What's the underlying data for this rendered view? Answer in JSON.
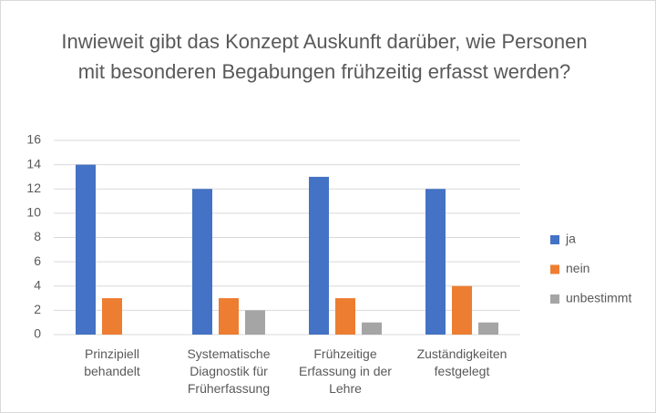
{
  "chart_data": {
    "type": "bar",
    "title": "Inwieweit gibt das Konzept Auskunft darüber, wie Personen mit besonderen Begabungen frühzeitig erfasst werden?",
    "categories": [
      "Prinzipiell behandelt",
      "Systematische Diagnostik für Früherfassung",
      "Frühzeitige Erfassung in der Lehre",
      "Zuständigkeiten festgelegt"
    ],
    "series": [
      {
        "name": "ja",
        "color": "#4472c4",
        "values": [
          14,
          12,
          13,
          12
        ]
      },
      {
        "name": "nein",
        "color": "#ed7d31",
        "values": [
          3,
          3,
          3,
          4
        ]
      },
      {
        "name": "unbestimmt",
        "color": "#a5a5a5",
        "values": [
          0,
          2,
          1,
          1
        ]
      }
    ],
    "ylim": [
      0,
      16
    ],
    "yticks": [
      0,
      2,
      4,
      6,
      8,
      10,
      12,
      14,
      16
    ],
    "grid": true,
    "legend": "right"
  }
}
